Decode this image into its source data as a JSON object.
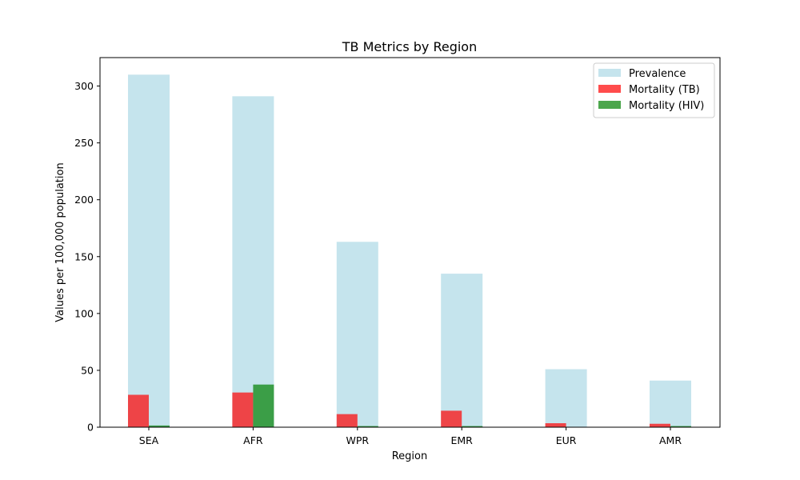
{
  "chart_data": {
    "type": "bar",
    "title": "TB Metrics by Region",
    "xlabel": "Region",
    "ylabel": "Values per 100,000 population",
    "categories": [
      "SEA",
      "AFR",
      "WPR",
      "EMR",
      "EUR",
      "AMR"
    ],
    "ylim": [
      0,
      325
    ],
    "yticks": [
      0,
      50,
      100,
      150,
      200,
      250,
      300
    ],
    "grid": false,
    "legend_position": "top-right",
    "series": [
      {
        "name": "Prevalence",
        "color": "#add8e6",
        "opacity": 0.7,
        "layout": "wide-background",
        "values": [
          310,
          291,
          163,
          135,
          51,
          41
        ]
      },
      {
        "name": "Mortality (TB)",
        "color": "#ff0000",
        "opacity": 0.7,
        "layout": "left",
        "values": [
          28.5,
          30.5,
          11.5,
          14.5,
          3.5,
          3.0
        ]
      },
      {
        "name": "Mortality (HIV)",
        "color": "#008000",
        "opacity": 0.7,
        "layout": "right",
        "values": [
          1.5,
          37.5,
          1.0,
          1.0,
          0.3,
          1.0
        ]
      }
    ]
  }
}
